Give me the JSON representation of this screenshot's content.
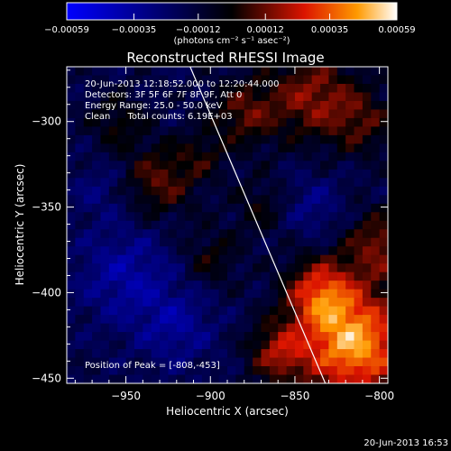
{
  "chart_data": {
    "type": "heatmap",
    "title": "Reconstructed RHESSI Image",
    "xlabel": "Heliocentric X (arcsec)",
    "ylabel": "Heliocentric Y (arcsec)",
    "xlim": [
      -985,
      -795
    ],
    "ylim": [
      -453,
      -268
    ],
    "x_ticks": [
      -950,
      -900,
      -850,
      -800
    ],
    "y_ticks": [
      -300,
      -350,
      -400,
      -450
    ],
    "colorbar": {
      "ticks": [
        "-0.00059",
        "-0.00035",
        "-0.00012",
        "0.00012",
        "0.00035",
        "0.00059"
      ],
      "range": [
        -0.00059,
        0.00059
      ],
      "unit_label": "(photons cm⁻² s⁻¹ asec⁻²)"
    },
    "annotations": [
      "20-Jun-2013 12:18:52.000 to 12:20:44.000",
      "Detectors: 3F 5F 6F 7F 8F 9F, Att 0",
      "Energy Range: 25.0 - 50.0 keV",
      "Clean      Total counts: 6.19E+03"
    ],
    "peak_label": "Position of Peak = [-808,-453]",
    "peak": [
      -808,
      -453
    ],
    "limb_line": [
      [
        -912,
        -268
      ],
      [
        -832,
        -453
      ]
    ],
    "grid_rows": 37,
    "grid_cols": 38,
    "blobs": [
      {
        "x": -815,
        "y": -430,
        "s": 22,
        "a": 0.00062
      },
      {
        "x": -835,
        "y": -400,
        "s": 14,
        "a": 0.0004
      },
      {
        "x": -800,
        "y": -372,
        "s": 14,
        "a": 0.00028
      },
      {
        "x": -860,
        "y": -435,
        "s": 12,
        "a": 0.0003
      },
      {
        "x": -840,
        "y": -285,
        "s": 18,
        "a": 0.0003
      },
      {
        "x": -880,
        "y": -295,
        "s": 14,
        "a": 0.00024
      },
      {
        "x": -810,
        "y": -300,
        "s": 14,
        "a": 0.0002
      },
      {
        "x": -930,
        "y": -335,
        "s": 15,
        "a": 0.00025
      },
      {
        "x": -900,
        "y": -380,
        "s": 12,
        "a": 0.00016
      },
      {
        "x": -955,
        "y": -300,
        "s": 12,
        "a": 0.00016
      },
      {
        "x": -870,
        "y": -350,
        "s": 12,
        "a": 0.00014
      },
      {
        "x": -905,
        "y": -320,
        "s": 10,
        "a": 0.00014
      },
      {
        "x": -950,
        "y": -390,
        "s": 20,
        "a": -0.0002
      },
      {
        "x": -920,
        "y": -420,
        "s": 16,
        "a": -0.00017
      },
      {
        "x": -840,
        "y": -350,
        "s": 13,
        "a": -0.00013
      },
      {
        "x": -965,
        "y": -340,
        "s": 12,
        "a": -0.0001
      }
    ],
    "timestamp": "20-Jun-2013 16:53",
    "colors": {
      "background": "#000000",
      "text": "#ffffff",
      "neg_low": "#0000ff",
      "zero": "#000000",
      "mid": "#dc1400",
      "high": "#ff9a00",
      "top": "#ffffff"
    }
  }
}
